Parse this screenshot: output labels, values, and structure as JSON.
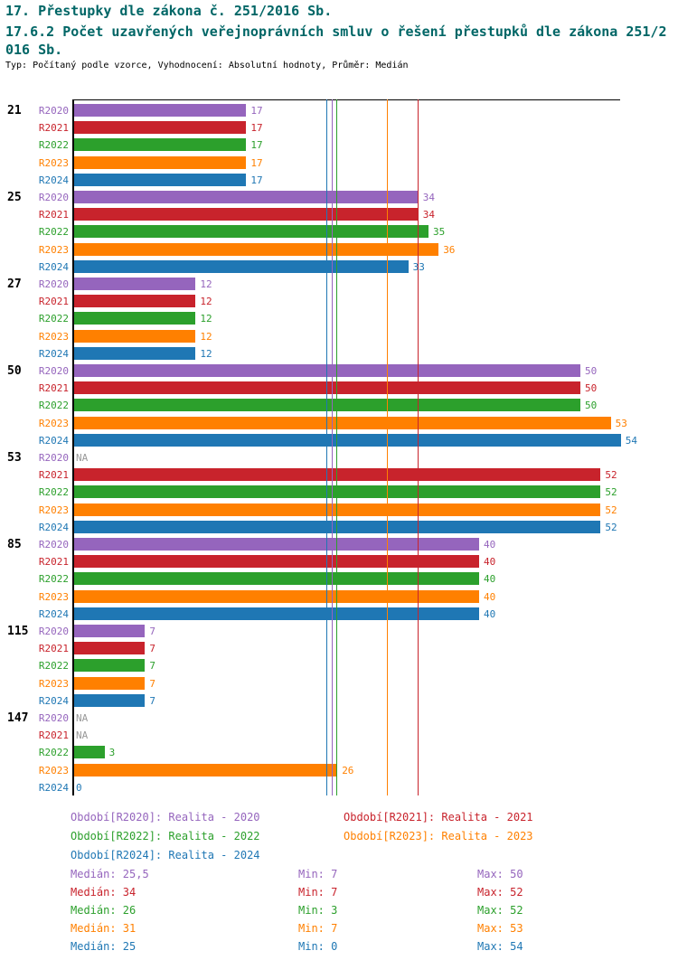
{
  "title": {
    "line1": "17. Přestupky dle zákona č. 251/2016 Sb.",
    "line2": "17.6.2 Počet uzavřených veřejnoprávních smluv o řešení přestupků dle zákona 251/2016 Sb.",
    "subtitle": "Typ: Počítaný podle vzorce, Vyhodnocení: Absolutní hodnoty, Průměr: Medián"
  },
  "chart_data": {
    "type": "bar",
    "orientation": "horizontal",
    "xlim": [
      0,
      54
    ],
    "grid": false,
    "legend_position": "bottom",
    "axis_color": "#000000",
    "na_color": "#999999",
    "categories": [
      "21",
      "25",
      "27",
      "50",
      "53",
      "85",
      "115",
      "147"
    ],
    "series": [
      {
        "period": "R2020",
        "legend_label": "Období[R2020]: Realita - 2020",
        "color": "#9565bd",
        "values": [
          17,
          34,
          12,
          50,
          null,
          40,
          7,
          null
        ],
        "value_labels": [
          "17",
          "34",
          "12",
          "50",
          "NA",
          "40",
          "7",
          "NA"
        ],
        "median_value": 25.5,
        "median_text": "Medián: 25,5",
        "min_text": "Min: 7",
        "max_text": "Max: 50"
      },
      {
        "period": "R2021",
        "legend_label": "Období[R2021]: Realita - 2021",
        "color": "#c8232c",
        "values": [
          17,
          34,
          12,
          50,
          52,
          40,
          7,
          null
        ],
        "value_labels": [
          "17",
          "34",
          "12",
          "50",
          "52",
          "40",
          "7",
          "NA"
        ],
        "median_value": 34,
        "median_text": "Medián: 34",
        "min_text": "Min: 7",
        "max_text": "Max: 52"
      },
      {
        "period": "R2022",
        "legend_label": "Období[R2022]: Realita - 2022",
        "color": "#2ca02c",
        "values": [
          17,
          35,
          12,
          50,
          52,
          40,
          7,
          3
        ],
        "value_labels": [
          "17",
          "35",
          "12",
          "50",
          "52",
          "40",
          "7",
          "3"
        ],
        "median_value": 26,
        "median_text": "Medián: 26",
        "min_text": "Min: 3",
        "max_text": "Max: 52"
      },
      {
        "period": "R2023",
        "legend_label": "Období[R2023]: Realita - 2023",
        "color": "#ff8000",
        "values": [
          17,
          36,
          12,
          53,
          52,
          40,
          7,
          26
        ],
        "value_labels": [
          "17",
          "36",
          "12",
          "53",
          "52",
          "40",
          "7",
          "26"
        ],
        "median_value": 31,
        "median_text": "Medián: 31",
        "min_text": "Min: 7",
        "max_text": "Max: 53"
      },
      {
        "period": "R2024",
        "legend_label": "Období[R2024]: Realita - 2024",
        "color": "#1f77b4",
        "values": [
          17,
          33,
          12,
          54,
          52,
          40,
          7,
          0
        ],
        "value_labels": [
          "17",
          "33",
          "12",
          "54",
          "52",
          "40",
          "7",
          "0"
        ],
        "median_value": 25,
        "median_text": "Medián: 25",
        "min_text": "Min: 0",
        "max_text": "Max: 54"
      }
    ]
  }
}
